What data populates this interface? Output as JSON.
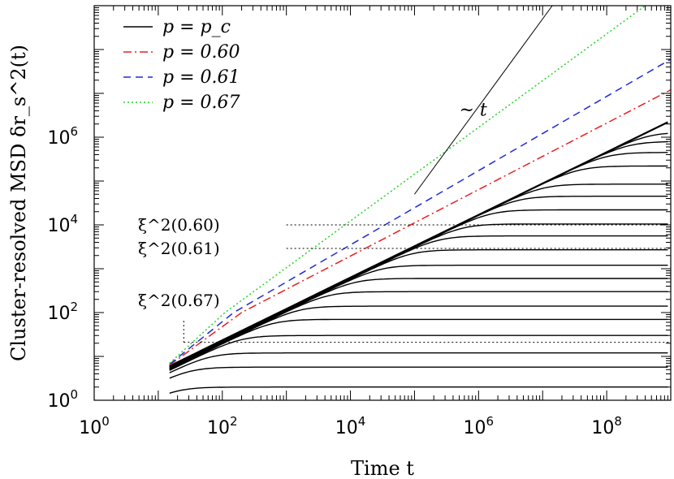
{
  "chart_data": {
    "type": "line",
    "xlabel": "Time t",
    "ylabel": "Cluster-resolved MSD δr_s^2(t)",
    "x_scale": "log",
    "y_scale": "log",
    "xlim": [
      1,
      1000000000
    ],
    "ylim": [
      1,
      1000000000
    ],
    "x_ticks": [
      {
        "base": "10",
        "exp": "0",
        "value": 1
      },
      {
        "base": "10",
        "exp": "2",
        "value": 100
      },
      {
        "base": "10",
        "exp": "4",
        "value": 10000
      },
      {
        "base": "10",
        "exp": "6",
        "value": 1000000
      },
      {
        "base": "10",
        "exp": "8",
        "value": 100000000
      }
    ],
    "y_ticks": [
      {
        "base": "10",
        "exp": "0",
        "value": 1
      },
      {
        "base": "10",
        "exp": "2",
        "value": 100
      },
      {
        "base": "10",
        "exp": "4",
        "value": 10000
      },
      {
        "base": "10",
        "exp": "6",
        "value": 1000000
      }
    ],
    "grid": false,
    "legend_position": "top-left",
    "legend": [
      {
        "label": "p = p_c",
        "color": "#000000",
        "dash": "solid"
      },
      {
        "label": "p = 0.60",
        "color": "#e8201f",
        "dash": "dashdot"
      },
      {
        "label": "p = 0.61",
        "color": "#1f2bd8",
        "dash": "dashed"
      },
      {
        "label": "p = 0.67",
        "color": "#22d422",
        "dash": "dotted"
      }
    ],
    "power_laws": [
      {
        "name": "p = 0.60",
        "color": "#e8201f",
        "dash": "dashdot",
        "x_start": 15,
        "x_end": 1000000000,
        "y_start": 6.3,
        "y_end": 12000000,
        "y_junction": 100,
        "x_junction": 200
      },
      {
        "name": "p = 0.61",
        "color": "#1f2bd8",
        "dash": "dashed",
        "x_start": 15,
        "x_end": 1000000000,
        "y_start": 6.6,
        "y_end": 60000000,
        "y_junction": 100,
        "x_junction": 150
      },
      {
        "name": "p = 0.67",
        "color": "#22d422",
        "dash": "dotted",
        "x_start": 15,
        "x_end": 400000000,
        "y_start": 7.0,
        "y_end": 1000000000,
        "y_junction": 100,
        "x_junction": 110
      }
    ],
    "critical_curve": {
      "name": "p = p_c",
      "x_start": 15,
      "x_end": 900000000,
      "y_start": 6.0,
      "y_end": 2200000
    },
    "plateau_curves": [
      {
        "x0": 15,
        "y0": 1.7,
        "plateau": 2.0
      },
      {
        "x0": 15,
        "y0": 3.4,
        "plateau": 5.7
      },
      {
        "x0": 15,
        "y0": 4.3,
        "plateau": 12
      },
      {
        "x0": 15,
        "y0": 4.8,
        "plateau": 30
      },
      {
        "x0": 15,
        "y0": 5.0,
        "plateau": 70
      },
      {
        "x0": 15,
        "y0": 5.1,
        "plateau": 140
      },
      {
        "x0": 15,
        "y0": 5.2,
        "plateau": 300
      },
      {
        "x0": 15,
        "y0": 5.3,
        "plateau": 600
      },
      {
        "x0": 15,
        "y0": 5.4,
        "plateau": 1200
      },
      {
        "x0": 15,
        "y0": 5.5,
        "plateau": 2700
      },
      {
        "x0": 15,
        "y0": 5.6,
        "plateau": 5600
      },
      {
        "x0": 15,
        "y0": 5.7,
        "plateau": 10500
      },
      {
        "x0": 15,
        "y0": 5.8,
        "plateau": 22000
      },
      {
        "x0": 15,
        "y0": 5.9,
        "plateau": 45000
      },
      {
        "x0": 15,
        "y0": 5.9,
        "plateau": 85000
      },
      {
        "x0": 15,
        "y0": 6.0,
        "plateau": 220000
      },
      {
        "x0": 15,
        "y0": 6.0,
        "plateau": 450000
      },
      {
        "x0": 15,
        "y0": 6.0,
        "plateau": 800000
      },
      {
        "x0": 15,
        "y0": 6.0,
        "plateau": 1300000
      }
    ],
    "reference_line": {
      "label": "~ t",
      "x_start": 100000,
      "x_end": 100000000,
      "y_start": 50000,
      "y_end": 50000000000
    },
    "xi_lines": [
      {
        "label": "ξ^2(0.60)",
        "y": 10000,
        "x_start": 1000,
        "x_end": 1000000000
      },
      {
        "label": "ξ^2(0.61)",
        "y": 2900,
        "x_start": 1000,
        "x_end": 1000000000
      },
      {
        "label": "ξ^2(0.67)",
        "y": 21,
        "x_start": 25,
        "x_end": 1000000000,
        "x_label": 25,
        "y_label_top": 65
      }
    ]
  }
}
